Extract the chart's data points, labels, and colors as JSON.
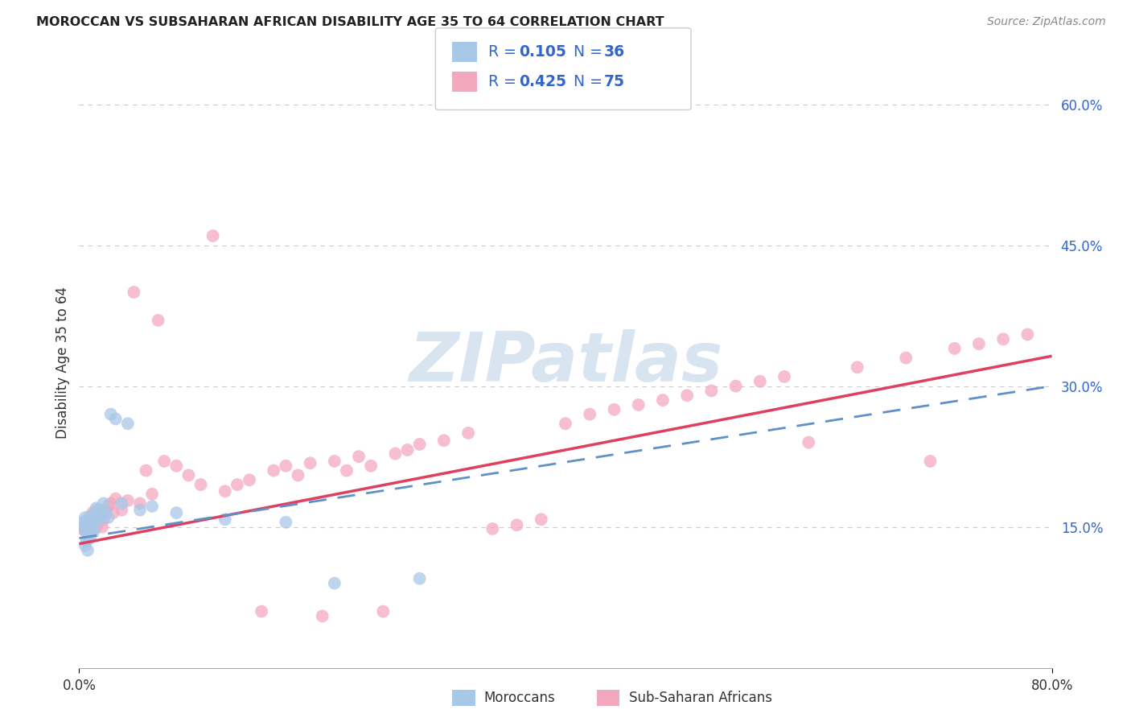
{
  "title": "MOROCCAN VS SUBSAHARAN AFRICAN DISABILITY AGE 35 TO 64 CORRELATION CHART",
  "source": "Source: ZipAtlas.com",
  "ylabel": "Disability Age 35 to 64",
  "xlim": [
    0.0,
    0.8
  ],
  "ylim": [
    0.0,
    0.65
  ],
  "ytick_positions": [
    0.15,
    0.3,
    0.45,
    0.6
  ],
  "ytick_labels": [
    "15.0%",
    "30.0%",
    "45.0%",
    "60.0%"
  ],
  "xtick_left_label": "0.0%",
  "xtick_right_label": "80.0%",
  "moroccan_color": "#a8c8e8",
  "subsaharan_color": "#f4a8c0",
  "moroccan_line_color": "#6090c8",
  "subsaharan_line_color": "#e04060",
  "legend_text_color": "#3366cc",
  "watermark": "ZIPatlas",
  "watermark_color": "#d8e4f0",
  "background_color": "#ffffff",
  "grid_color": "#cccccc",
  "title_color": "#222222",
  "source_color": "#888888",
  "label_color": "#333333",
  "axis_tick_color": "#3366cc",
  "scatter_alpha": 0.75,
  "scatter_size": 130,
  "moroccan_x": [
    0.003,
    0.004,
    0.005,
    0.005,
    0.006,
    0.006,
    0.007,
    0.007,
    0.008,
    0.008,
    0.009,
    0.009,
    0.01,
    0.01,
    0.011,
    0.012,
    0.013,
    0.014,
    0.015,
    0.016,
    0.017,
    0.018,
    0.02,
    0.022,
    0.024,
    0.026,
    0.03,
    0.035,
    0.04,
    0.05,
    0.06,
    0.08,
    0.12,
    0.17,
    0.21,
    0.28
  ],
  "moroccan_y": [
    0.155,
    0.148,
    0.16,
    0.13,
    0.145,
    0.135,
    0.15,
    0.125,
    0.158,
    0.142,
    0.152,
    0.138,
    0.155,
    0.162,
    0.148,
    0.145,
    0.155,
    0.17,
    0.165,
    0.16,
    0.158,
    0.168,
    0.175,
    0.165,
    0.16,
    0.27,
    0.265,
    0.175,
    0.26,
    0.168,
    0.172,
    0.165,
    0.158,
    0.155,
    0.09,
    0.095
  ],
  "subsaharan_x": [
    0.003,
    0.004,
    0.005,
    0.006,
    0.007,
    0.008,
    0.009,
    0.01,
    0.011,
    0.012,
    0.013,
    0.014,
    0.015,
    0.016,
    0.017,
    0.018,
    0.019,
    0.02,
    0.022,
    0.024,
    0.026,
    0.028,
    0.03,
    0.035,
    0.04,
    0.045,
    0.05,
    0.055,
    0.06,
    0.065,
    0.07,
    0.08,
    0.09,
    0.1,
    0.11,
    0.12,
    0.13,
    0.14,
    0.15,
    0.16,
    0.17,
    0.18,
    0.19,
    0.2,
    0.21,
    0.22,
    0.23,
    0.24,
    0.25,
    0.26,
    0.27,
    0.28,
    0.3,
    0.32,
    0.34,
    0.36,
    0.38,
    0.4,
    0.42,
    0.44,
    0.46,
    0.48,
    0.5,
    0.52,
    0.54,
    0.56,
    0.58,
    0.6,
    0.64,
    0.68,
    0.7,
    0.72,
    0.74,
    0.76,
    0.78
  ],
  "subsaharan_y": [
    0.148,
    0.152,
    0.145,
    0.155,
    0.15,
    0.16,
    0.158,
    0.145,
    0.165,
    0.155,
    0.162,
    0.15,
    0.168,
    0.155,
    0.16,
    0.165,
    0.15,
    0.158,
    0.168,
    0.172,
    0.175,
    0.165,
    0.18,
    0.168,
    0.178,
    0.4,
    0.175,
    0.21,
    0.185,
    0.37,
    0.22,
    0.215,
    0.205,
    0.195,
    0.46,
    0.188,
    0.195,
    0.2,
    0.06,
    0.21,
    0.215,
    0.205,
    0.218,
    0.055,
    0.22,
    0.21,
    0.225,
    0.215,
    0.06,
    0.228,
    0.232,
    0.238,
    0.242,
    0.25,
    0.148,
    0.152,
    0.158,
    0.26,
    0.27,
    0.275,
    0.28,
    0.285,
    0.29,
    0.295,
    0.3,
    0.305,
    0.31,
    0.24,
    0.32,
    0.33,
    0.22,
    0.34,
    0.345,
    0.35,
    0.355
  ],
  "moroccan_line_start_y": 0.138,
  "moroccan_line_end_y": 0.3,
  "subsaharan_line_start_y": 0.132,
  "subsaharan_line_end_y": 0.332
}
